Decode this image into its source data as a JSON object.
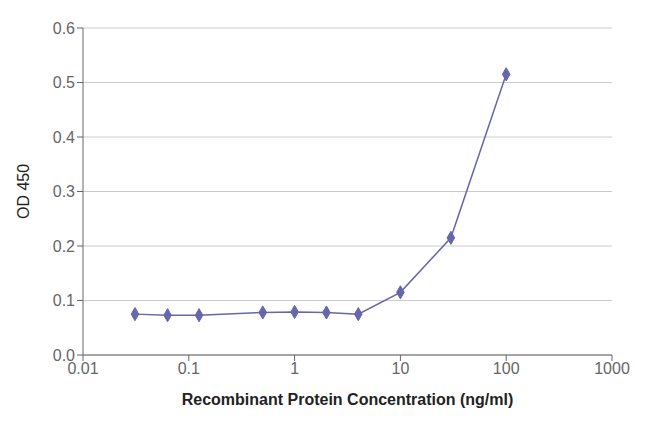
{
  "chart_data": {
    "type": "line",
    "xlabel": "Recombinant Protein Concentration (ng/ml)",
    "ylabel": "OD 450",
    "x": [
      0.031,
      0.063,
      0.125,
      0.5,
      1.0,
      2.0,
      4.0,
      10.0,
      30.0,
      100.0
    ],
    "values": [
      0.075,
      0.073,
      0.073,
      0.078,
      0.079,
      0.078,
      0.075,
      0.115,
      0.215,
      0.515
    ],
    "color": "#6666aa",
    "marker": "diamond",
    "line_style": "solid",
    "log": "x",
    "xlim": [
      0.01,
      1000
    ],
    "xticks": [
      0.01,
      0.1,
      1,
      10,
      100,
      1000
    ],
    "ylim": [
      0,
      0.6
    ],
    "yticks": [
      {
        "value": 0,
        "label": "0.0"
      },
      0.1,
      0.2,
      0.3,
      0.4,
      0.5,
      0.6
    ],
    "grid": "y"
  }
}
